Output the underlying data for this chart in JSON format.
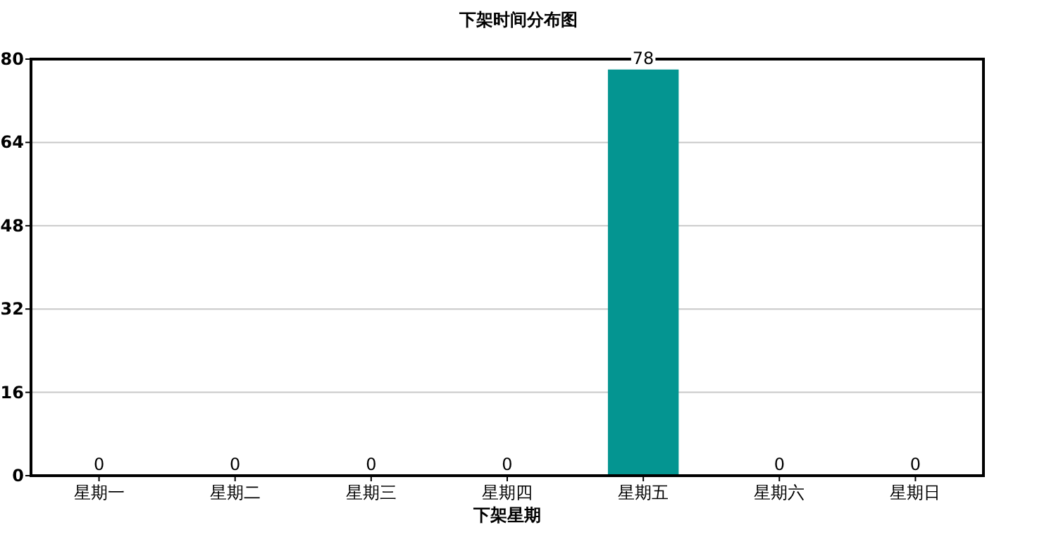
{
  "chart_data": {
    "type": "bar",
    "title": "下架时间分布图",
    "xlabel": "下架星期",
    "categories": [
      "星期一",
      "星期二",
      "星期三",
      "星期四",
      "星期五",
      "星期六",
      "星期日"
    ],
    "values": [
      0,
      0,
      0,
      0,
      78,
      0,
      0
    ],
    "color": "#049591",
    "ylim": [
      0,
      80
    ],
    "yticks": [
      0,
      16,
      32,
      48,
      64,
      80
    ],
    "grid": "y",
    "data_labels": true
  }
}
